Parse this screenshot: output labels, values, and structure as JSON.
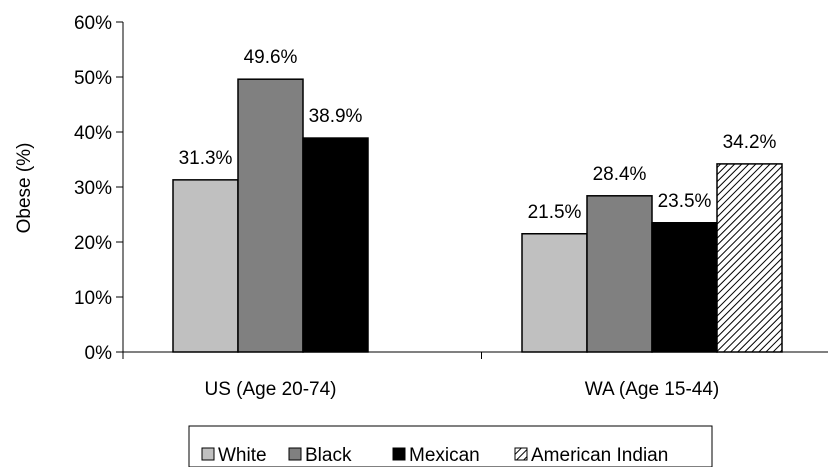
{
  "chart_data": {
    "type": "bar",
    "categories": [
      "US (Age 20-74)",
      "WA (Age 15-44)"
    ],
    "series": [
      {
        "name": "White",
        "values": [
          31.3,
          21.5
        ],
        "labels": [
          "31.3%",
          "21.5%"
        ],
        "color": "#c0c0c0",
        "pattern": "solid"
      },
      {
        "name": "Black",
        "values": [
          49.6,
          28.4
        ],
        "labels": [
          "49.6%",
          "28.4%"
        ],
        "color": "#808080",
        "pattern": "solid"
      },
      {
        "name": "Mexican",
        "values": [
          38.9,
          23.5
        ],
        "labels": [
          "38.9%",
          "23.5%"
        ],
        "color": "#000000",
        "pattern": "solid"
      },
      {
        "name": "American Indian",
        "values": [
          null,
          34.2
        ],
        "labels": [
          null,
          "34.2%"
        ],
        "color": "#ffffff",
        "pattern": "diagonal-hatch"
      }
    ],
    "ylabel": "Obese (%)",
    "ylim": [
      0,
      60
    ],
    "yticks": [
      0,
      10,
      20,
      30,
      40,
      50,
      60
    ],
    "ytick_labels": [
      "0%",
      "10%",
      "20%",
      "30%",
      "40%",
      "50%",
      "60%"
    ],
    "grid": false,
    "legend_position": "bottom"
  }
}
